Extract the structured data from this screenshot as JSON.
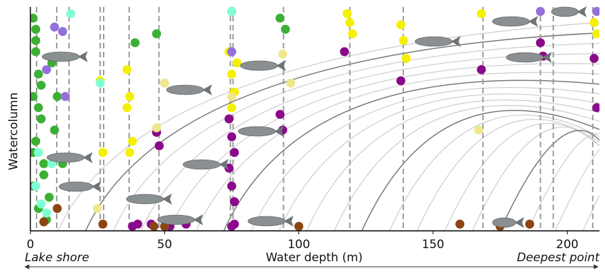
{
  "chart_data": {
    "type": "scatter",
    "x_label": "Water depth (m)",
    "y_label": "Watercolumn",
    "left_note": "Lake shore",
    "right_note": "Deepest point",
    "xlim": [
      0,
      212
    ],
    "xticks": [
      0,
      50,
      100,
      150,
      200
    ],
    "ylim": [
      0,
      1
    ],
    "sampling_depths": [
      2.3,
      9.8,
      14.4,
      26,
      27.3,
      36.8,
      47.9,
      74.5,
      75.5,
      94.3,
      119,
      138.9,
      168.6,
      190,
      194.8,
      209.5
    ],
    "series": [
      {
        "color": "#3cb034",
        "x": [
          1,
          2,
          3,
          1,
          4,
          2,
          5,
          1,
          3,
          6,
          2,
          4,
          1,
          8,
          10,
          9,
          12,
          7,
          47,
          39,
          93,
          95,
          75,
          3,
          5,
          2
        ],
        "y": [
          0.95,
          0.85,
          0.7,
          0.6,
          0.5,
          0.4,
          0.3,
          0.2,
          0.1,
          0.05,
          0.8,
          0.65,
          0.35,
          0.75,
          0.6,
          0.45,
          0.3,
          0.15,
          0.88,
          0.84,
          0.95,
          0.9,
          0.98,
          0.55,
          0.25,
          0.9
        ]
      },
      {
        "color": "#f5f000",
        "x": [
          36,
          37,
          36,
          38,
          37,
          26,
          27,
          74,
          75,
          76,
          75,
          118,
          119,
          120,
          138,
          139,
          140,
          210,
          211,
          168,
          77
        ],
        "y": [
          0.72,
          0.6,
          0.55,
          0.4,
          0.35,
          0.67,
          0.35,
          0.8,
          0.7,
          0.62,
          0.55,
          0.97,
          0.93,
          0.88,
          0.92,
          0.85,
          0.77,
          0.93,
          0.88,
          0.97,
          0.75
        ]
      },
      {
        "color": "#8b0a8b",
        "x": [
          47,
          48,
          74,
          75,
          76,
          74,
          75,
          76,
          93,
          94,
          117,
          138,
          168,
          190,
          191,
          210,
          211,
          38,
          45,
          52,
          58,
          40,
          75,
          76
        ],
        "y": [
          0.44,
          0.38,
          0.5,
          0.42,
          0.35,
          0.28,
          0.2,
          0.13,
          0.52,
          0.45,
          0.8,
          0.67,
          0.72,
          0.84,
          0.78,
          0.77,
          0.55,
          0.02,
          0.03,
          0.02,
          0.03,
          0.03,
          0.02,
          0.03
        ]
      },
      {
        "color": "#7fffd4",
        "x": [
          15,
          2,
          4,
          6,
          8,
          26,
          75,
          3
        ],
        "y": [
          0.97,
          0.2,
          0.12,
          0.08,
          0.3,
          0.66,
          0.98,
          0.35
        ]
      },
      {
        "color": "#8b4513",
        "x": [
          5,
          27,
          50,
          100,
          160,
          175,
          186,
          10,
          46
        ],
        "y": [
          0.04,
          0.03,
          0.02,
          0.02,
          0.03,
          0.02,
          0.03,
          0.1,
          0.02
        ]
      },
      {
        "color": "#9370db",
        "x": [
          9,
          12,
          13,
          75,
          190,
          211,
          6
        ],
        "y": [
          0.91,
          0.89,
          0.6,
          0.8,
          0.98,
          0.98,
          0.72
        ]
      },
      {
        "color": "#f0e68c",
        "x": [
          50,
          47,
          75,
          94,
          97,
          167,
          25
        ],
        "y": [
          0.66,
          0.46,
          0.6,
          0.79,
          0.66,
          0.45,
          0.1
        ]
      }
    ]
  }
}
